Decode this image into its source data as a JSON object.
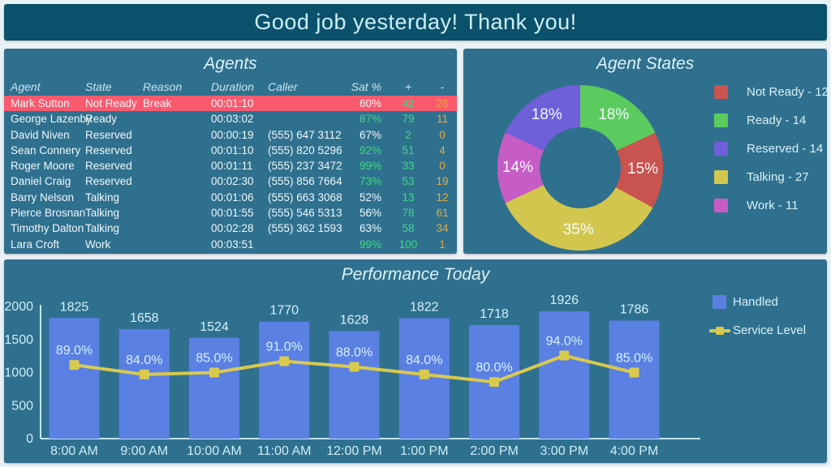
{
  "header": {
    "title": "Good job yesterday! Thank you!"
  },
  "theme": {
    "background": "#e9f1f4",
    "header_bg": "#0b516c",
    "panel_bg": "#30708f",
    "title_text": "#d9f3f9",
    "body_text": "#eef8fa",
    "highlight_row_bg": "#fb5a6e",
    "positive_green": "#41d787",
    "negative_orange": "#e8a73b",
    "axis_text": "#cdeef6"
  },
  "agents_panel": {
    "title": "Agents",
    "columns": [
      "Agent",
      "State",
      "Reason",
      "Duration",
      "Caller",
      "Sat %",
      "+",
      "-"
    ],
    "rows": [
      {
        "agent": "Mark Sutton",
        "state": "Not Ready",
        "reason": "Break",
        "duration": "00:01:10",
        "caller": "",
        "sat": "60%",
        "plus": "42",
        "minus": "28",
        "highlighted": true
      },
      {
        "agent": "George Lazenby",
        "state": "Ready",
        "reason": "",
        "duration": "00:03:02",
        "caller": "",
        "sat": "87%",
        "plus": "79",
        "minus": "11",
        "highlighted": false
      },
      {
        "agent": "David Niven",
        "state": "Reserved",
        "reason": "",
        "duration": "00:00:19",
        "caller": "(555) 647 3112",
        "sat": "67%",
        "plus": "2",
        "minus": "0",
        "highlighted": false
      },
      {
        "agent": "Sean Connery",
        "state": "Reserved",
        "reason": "",
        "duration": "00:01:10",
        "caller": "(555) 820 5296",
        "sat": "92%",
        "plus": "51",
        "minus": "4",
        "highlighted": false
      },
      {
        "agent": "Roger Moore",
        "state": "Reserved",
        "reason": "",
        "duration": "00:01:11",
        "caller": "(555) 237 3472",
        "sat": "99%",
        "plus": "33",
        "minus": "0",
        "highlighted": false
      },
      {
        "agent": "Daniel Craig",
        "state": "Reserved",
        "reason": "",
        "duration": "00:02:30",
        "caller": "(555) 856 7664",
        "sat": "73%",
        "plus": "53",
        "minus": "19",
        "highlighted": false
      },
      {
        "agent": "Barry Nelson",
        "state": "Talking",
        "reason": "",
        "duration": "00:01:06",
        "caller": "(555) 663 3068",
        "sat": "52%",
        "plus": "13",
        "minus": "12",
        "highlighted": false
      },
      {
        "agent": "Pierce Brosnan",
        "state": "Talking",
        "reason": "",
        "duration": "00:01:55",
        "caller": "(555) 546 5313",
        "sat": "56%",
        "plus": "78",
        "minus": "61",
        "highlighted": false
      },
      {
        "agent": "Timothy Dalton",
        "state": "Talking",
        "reason": "",
        "duration": "00:02:28",
        "caller": "(555) 362 1593",
        "sat": "63%",
        "plus": "58",
        "minus": "34",
        "highlighted": false
      },
      {
        "agent": "Lara Croft",
        "state": "Work",
        "reason": "",
        "duration": "00:03:51",
        "caller": "",
        "sat": "99%",
        "plus": "100",
        "minus": "1",
        "highlighted": false
      }
    ],
    "sat_green_threshold": 70
  },
  "chart_data": [
    {
      "type": "pie",
      "title": "Agent States",
      "donut": true,
      "slices": [
        {
          "label": "Ready",
          "pct": 18,
          "pct_label": "18%",
          "color": "#5ccb5f"
        },
        {
          "label": "Not Ready",
          "pct": 15,
          "pct_label": "15%",
          "color": "#c9534e"
        },
        {
          "label": "Talking",
          "pct": 35,
          "pct_label": "35%",
          "color": "#d3c64f"
        },
        {
          "label": "Work",
          "pct": 14,
          "pct_label": "14%",
          "color": "#c75cc7"
        },
        {
          "label": "Reserved",
          "pct": 18,
          "pct_label": "18%",
          "color": "#6f5fd8"
        }
      ],
      "legend_position": "right",
      "legend": [
        {
          "label": "Not Ready - 12",
          "color": "#c9534e"
        },
        {
          "label": "Ready - 14",
          "color": "#5ccb5f"
        },
        {
          "label": "Reserved - 14",
          "color": "#6f5fd8"
        },
        {
          "label": "Talking - 27",
          "color": "#d3c64f"
        },
        {
          "label": "Work - 11",
          "color": "#c75cc7"
        }
      ]
    },
    {
      "type": "bar",
      "title": "Performance Today",
      "categories": [
        "8:00 AM",
        "9:00 AM",
        "10:00 AM",
        "11:00 AM",
        "12:00 PM",
        "1:00 PM",
        "2:00 PM",
        "3:00 PM",
        "4:00 PM"
      ],
      "series": [
        {
          "name": "Handled",
          "render": "bar",
          "color": "#5b80e4",
          "values": [
            1825,
            1658,
            1524,
            1770,
            1628,
            1822,
            1718,
            1926,
            1786
          ],
          "value_labels": [
            "1825",
            "1658",
            "1524",
            "1770",
            "1628",
            "1822",
            "1718",
            "1926",
            "1786"
          ]
        },
        {
          "name": "Service Level",
          "render": "line",
          "color": "#d9ca4e",
          "values": [
            89.0,
            84.0,
            85.0,
            91.0,
            88.0,
            84.0,
            80.0,
            94.0,
            85.0
          ],
          "value_labels": [
            "89.0%",
            "84.0%",
            "85.0%",
            "91.0%",
            "88.0%",
            "84.0%",
            "80.0%",
            "94.0%",
            "85.0%"
          ],
          "secondary_axis_range": [
            50,
            120
          ]
        }
      ],
      "ylabel": "",
      "xlabel": "",
      "ylim": [
        0,
        2000
      ],
      "yticks": [
        0,
        500,
        1000,
        1500,
        2000
      ],
      "grid": false,
      "legend_position": "right"
    }
  ]
}
